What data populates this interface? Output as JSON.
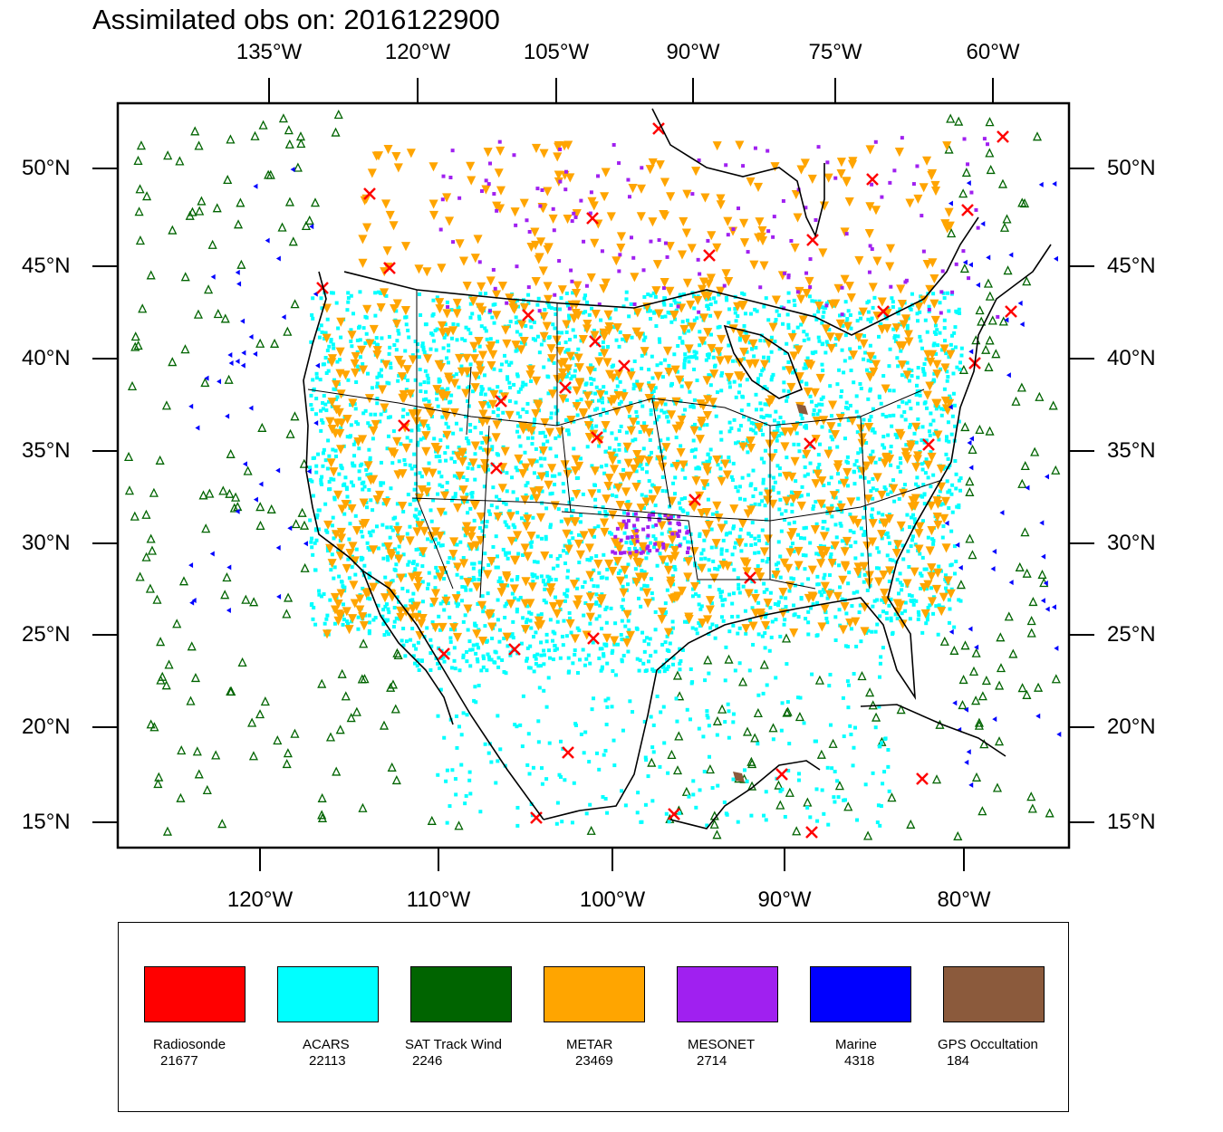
{
  "title": "Assimilated obs on: 2016122900",
  "top_axis_labels": [
    "135°W",
    "120°W",
    "105°W",
    "90°W",
    "75°W",
    "60°W"
  ],
  "bottom_axis_labels": [
    "120°W",
    "110°W",
    "100°W",
    "90°W",
    "80°W"
  ],
  "lat_labels": [
    "50°N",
    "45°N",
    "40°N",
    "35°N",
    "30°N",
    "25°N",
    "20°N",
    "15°N"
  ],
  "legend": [
    {
      "name": "Radiosonde",
      "count": "21677",
      "color": "#ff0000"
    },
    {
      "name": "ACARS",
      "count": "22113",
      "color": "#00ffff"
    },
    {
      "name": "SAT Track Wind",
      "count": "2246",
      "color": "#006400"
    },
    {
      "name": "METAR",
      "count": "23469",
      "color": "#ffa500"
    },
    {
      "name": "MESONET",
      "count": "2714",
      "color": "#a020f0"
    },
    {
      "name": "Marine",
      "count": "4318",
      "color": "#0000ff"
    },
    {
      "name": "GPS Occultation",
      "count": "184",
      "color": "#8b5a3c"
    }
  ]
}
